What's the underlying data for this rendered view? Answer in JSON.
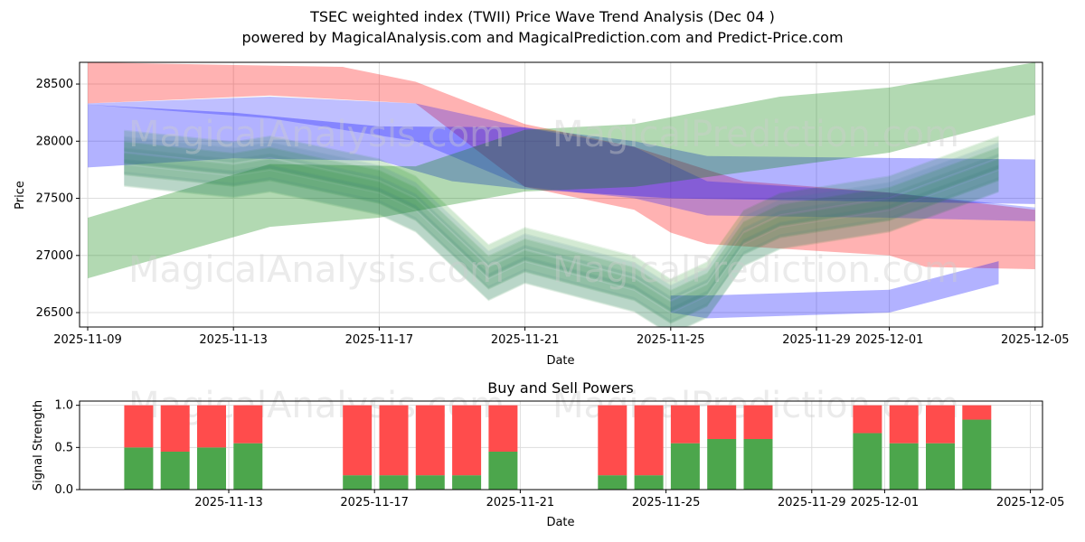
{
  "title": "TSEC weighted index (TWII) Price Wave Trend Analysis (Dec 04 )",
  "subtitle": "powered by MagicalAnalysis.com and MagicalPrediction.com and Predict-Price.com",
  "watermarks": [
    "MagicalAnalysis.com",
    "MagicalPrediction.com"
  ],
  "colors": {
    "red": "#ff0000",
    "blue": "#0000ff",
    "green": "#008000",
    "buy": "#4ca64c",
    "sell": "#ff4c4c"
  },
  "chart_data": [
    {
      "type": "area",
      "title": "",
      "xlabel": "Date",
      "ylabel": "Price",
      "ylim": [
        26374,
        28690
      ],
      "xlim": [
        "2025-11-08",
        "2025-12-05"
      ],
      "xticks": [
        "2025-11-09",
        "2025-11-13",
        "2025-11-17",
        "2025-11-21",
        "2025-11-25",
        "2025-11-29",
        "2025-12-01",
        "2025-12-05"
      ],
      "yticks": [
        26500,
        27000,
        27500,
        28000,
        28500
      ],
      "grid": true,
      "bands": [
        {
          "name": "red",
          "color": "red",
          "upper": [
            [
              "2025-11-09",
              28690
            ],
            [
              "2025-11-16",
              28650
            ],
            [
              "2025-11-18",
              28520
            ],
            [
              "2025-11-21",
              28150
            ],
            [
              "2025-11-24",
              27950
            ],
            [
              "2025-11-27",
              27650
            ],
            [
              "2025-12-01",
              27550
            ],
            [
              "2025-12-05",
              27400
            ]
          ],
          "lower": [
            [
              "2025-11-09",
              28330
            ],
            [
              "2025-11-14",
              28400
            ],
            [
              "2025-11-18",
              28330
            ],
            [
              "2025-11-21",
              27600
            ],
            [
              "2025-11-24",
              27400
            ],
            [
              "2025-11-25",
              27200
            ],
            [
              "2025-11-26",
              27100
            ],
            [
              "2025-12-01",
              27000
            ],
            [
              "2025-12-02",
              26900
            ],
            [
              "2025-12-05",
              26880
            ]
          ]
        },
        {
          "name": "blue",
          "color": "blue",
          "upper": [
            [
              "2025-11-09",
              28320
            ],
            [
              "2025-11-13",
              28250
            ],
            [
              "2025-11-17",
              28130
            ],
            [
              "2025-11-21",
              28120
            ],
            [
              "2025-11-24",
              28000
            ],
            [
              "2025-11-26",
              27870
            ],
            [
              "2025-12-05",
              27840
            ]
          ],
          "lower": [
            [
              "2025-11-09",
              27770
            ],
            [
              "2025-11-13",
              27850
            ],
            [
              "2025-11-17",
              27830
            ],
            [
              "2025-11-19",
              27650
            ],
            [
              "2025-11-21",
              27580
            ],
            [
              "2025-11-25",
              27500
            ],
            [
              "2025-12-05",
              27450
            ]
          ]
        },
        {
          "name": "purple",
          "color": "blue",
          "upper": [
            [
              "2025-11-09",
              28330
            ],
            [
              "2025-11-14",
              28390
            ],
            [
              "2025-11-18",
              28330
            ],
            [
              "2025-11-21",
              28120
            ],
            [
              "2025-11-24",
              27950
            ],
            [
              "2025-11-26",
              27650
            ],
            [
              "2025-12-01",
              27550
            ],
            [
              "2025-12-05",
              27420
            ]
          ],
          "lower": [
            [
              "2025-11-09",
              28320
            ],
            [
              "2025-11-14",
              28200
            ],
            [
              "2025-11-18",
              28000
            ],
            [
              "2025-11-21",
              27600
            ],
            [
              "2025-11-24",
              27500
            ],
            [
              "2025-11-26",
              27350
            ],
            [
              "2025-12-01",
              27330
            ],
            [
              "2025-12-05",
              27300
            ]
          ]
        },
        {
          "name": "green",
          "color": "green",
          "upper": [
            [
              "2025-11-09",
              27330
            ],
            [
              "2025-11-14",
              27800
            ],
            [
              "2025-11-18",
              27780
            ],
            [
              "2025-11-21",
              28100
            ],
            [
              "2025-11-24",
              28150
            ],
            [
              "2025-11-28",
              28390
            ],
            [
              "2025-12-01",
              28470
            ],
            [
              "2025-12-05",
              28690
            ]
          ],
          "lower": [
            [
              "2025-11-09",
              26800
            ],
            [
              "2025-11-14",
              27250
            ],
            [
              "2025-11-17",
              27330
            ],
            [
              "2025-11-21",
              27560
            ],
            [
              "2025-11-24",
              27600
            ],
            [
              "2025-12-01",
              27900
            ],
            [
              "2025-12-05",
              28230
            ]
          ]
        },
        {
          "name": "light-blue",
          "color": "blue",
          "upper": [
            [
              "2025-11-25",
              26650
            ],
            [
              "2025-11-26",
              26650
            ],
            [
              "2025-12-01",
              26700
            ],
            [
              "2025-12-04",
              26950
            ]
          ],
          "lower": [
            [
              "2025-11-25",
              26500
            ],
            [
              "2025-11-26",
              26450
            ],
            [
              "2025-12-01",
              26500
            ],
            [
              "2025-12-04",
              26750
            ]
          ]
        }
      ],
      "price_path": [
        [
          "2025-11-10",
          27850
        ],
        [
          "2025-11-13",
          27750
        ],
        [
          "2025-11-14",
          27800
        ],
        [
          "2025-11-17",
          27600
        ],
        [
          "2025-11-18",
          27450
        ],
        [
          "2025-11-20",
          26850
        ],
        [
          "2025-11-21",
          27000
        ],
        [
          "2025-11-24",
          26750
        ],
        [
          "2025-11-25",
          26550
        ],
        [
          "2025-11-26",
          26700
        ],
        [
          "2025-11-27",
          27150
        ],
        [
          "2025-11-28",
          27300
        ],
        [
          "2025-12-01",
          27450
        ],
        [
          "2025-12-04",
          27800
        ]
      ]
    },
    {
      "type": "bar",
      "title": "Buy and Sell Powers",
      "xlabel": "Date",
      "ylabel": "Signal Strength",
      "ylim": [
        0,
        1.05
      ],
      "xticks": [
        "2025-11-13",
        "2025-11-17",
        "2025-11-21",
        "2025-11-25",
        "2025-11-29",
        "2025-12-01",
        "2025-12-05"
      ],
      "yticks": [
        "0.0",
        "0.5",
        "1.0"
      ],
      "categories": [
        "2025-11-11",
        "2025-11-12",
        "2025-11-13",
        "2025-11-14",
        "2025-11-17",
        "2025-11-18",
        "2025-11-19",
        "2025-11-20",
        "2025-11-21",
        "2025-11-24",
        "2025-11-25",
        "2025-11-26",
        "2025-11-27",
        "2025-11-28",
        "2025-12-01",
        "2025-12-02",
        "2025-12-03",
        "2025-12-04"
      ],
      "series": [
        {
          "name": "Buy",
          "values": [
            0.5,
            0.45,
            0.5,
            0.55,
            0.17,
            0.17,
            0.17,
            0.17,
            0.45,
            0.17,
            0.17,
            0.55,
            0.6,
            0.6,
            0.67,
            0.55,
            0.55,
            0.83
          ]
        },
        {
          "name": "Sell",
          "values": [
            0.5,
            0.55,
            0.5,
            0.45,
            0.83,
            0.83,
            0.83,
            0.83,
            0.55,
            0.83,
            0.83,
            0.45,
            0.4,
            0.4,
            0.33,
            0.45,
            0.45,
            0.17
          ]
        }
      ]
    }
  ]
}
